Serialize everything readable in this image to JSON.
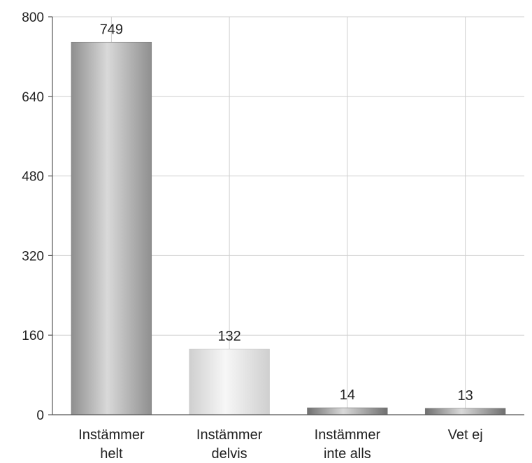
{
  "chart_data": {
    "type": "bar",
    "categories": [
      [
        "Instämmer",
        "helt"
      ],
      [
        "Instämmer",
        "delvis"
      ],
      [
        "Instämmer",
        "inte alls"
      ],
      [
        "Vet ej"
      ]
    ],
    "values": [
      749,
      132,
      14,
      13
    ],
    "data_labels": [
      "749",
      "132",
      "14",
      "13"
    ],
    "ylim": [
      0,
      800
    ],
    "yticks": [
      0,
      160,
      320,
      480,
      640,
      800
    ],
    "grid": true,
    "bar_colors": [
      "#8f8f8f",
      "#e6e6e6",
      "#6f6f6f",
      "#6f6f6f"
    ]
  }
}
